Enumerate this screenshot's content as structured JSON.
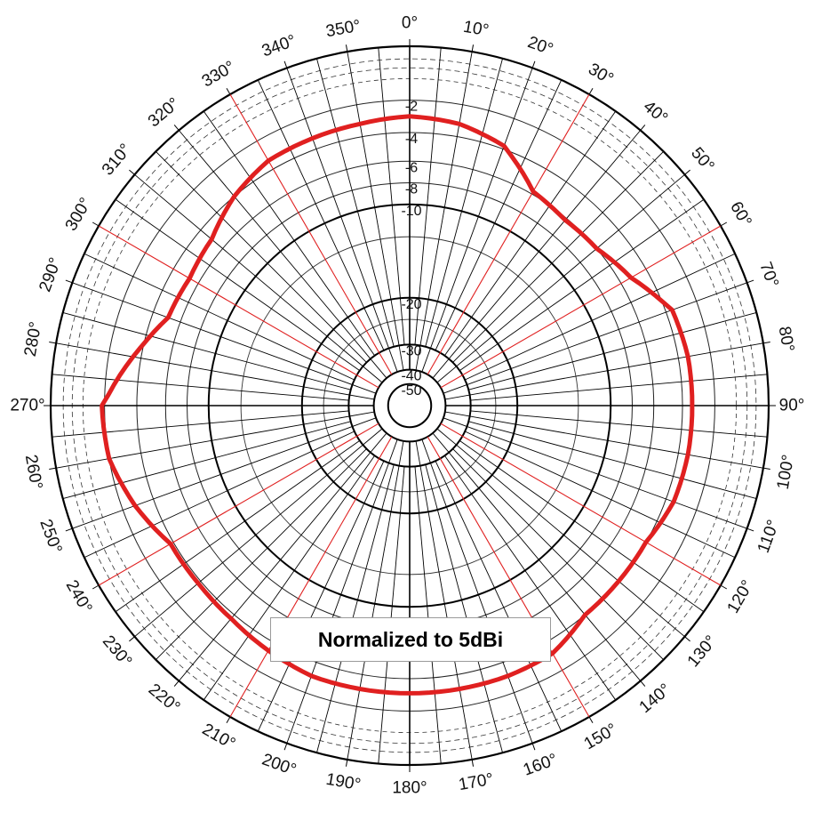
{
  "chart_data": {
    "type": "polar",
    "annotation": "Normalized to 5dBi",
    "angle_unit": "°",
    "angle_labels": [
      "0",
      "10",
      "20",
      "30",
      "40",
      "50",
      "60",
      "70",
      "80",
      "90",
      "100",
      "110",
      "120",
      "130",
      "140",
      "150",
      "160",
      "170",
      "180",
      "190",
      "200",
      "210",
      "220",
      "230",
      "240",
      "250",
      "260",
      "270",
      "280",
      "290",
      "300",
      "310",
      "320",
      "330",
      "340",
      "350"
    ],
    "radial_labels": [
      "-2",
      "-4",
      "-6",
      "-8",
      "-10",
      "-20",
      "-30",
      "-40",
      "-50"
    ],
    "radial_range_db": [
      -50,
      0
    ],
    "series": [
      {
        "color": "#e02020",
        "angles_deg": [
          0,
          10,
          20,
          30,
          40,
          50,
          60,
          70,
          80,
          90,
          100,
          110,
          120,
          130,
          140,
          150,
          160,
          170,
          180,
          190,
          200,
          210,
          220,
          230,
          240,
          250,
          260,
          270,
          280,
          290,
          300,
          310,
          320,
          330,
          340,
          350
        ],
        "values_db": [
          -3.0,
          -3.2,
          -3.8,
          -5.8,
          -6.2,
          -6.0,
          -5.2,
          -3.6,
          -3.4,
          -3.4,
          -3.4,
          -3.5,
          -4.0,
          -4.0,
          -4.0,
          -3.2,
          -3.1,
          -3.1,
          -3.1,
          -3.1,
          -3.1,
          -3.4,
          -3.7,
          -3.8,
          -3.8,
          -2.8,
          -2.0,
          -1.9,
          -3.5,
          -5.1,
          -5.3,
          -5.0,
          -4.0,
          -3.4,
          -3.3,
          -3.2
        ]
      }
    ],
    "accent_color": "#e02020",
    "grid": true
  }
}
